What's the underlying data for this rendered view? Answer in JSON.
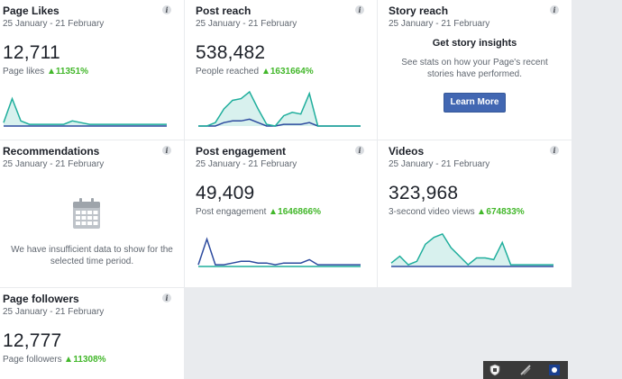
{
  "cards": {
    "likes": {
      "title": "Page Likes",
      "date": "25 January - 21 February",
      "value": "12,711",
      "sub_label": "Page likes",
      "delta": "11351%",
      "spark": [
        2,
        16,
        3,
        1,
        1,
        1,
        1,
        1,
        3,
        2,
        1,
        1,
        1,
        1,
        1,
        1,
        1,
        1,
        1,
        1
      ],
      "spark_secondary": [
        0,
        0,
        0,
        0,
        0,
        0,
        0,
        0,
        0,
        0,
        0,
        0,
        0,
        0,
        0,
        0,
        0,
        0,
        0,
        0
      ]
    },
    "reach": {
      "title": "Post reach",
      "date": "25 January - 21 February",
      "value": "538,482",
      "sub_label": "People reached",
      "delta": "1631664%",
      "spark": [
        0,
        0,
        2,
        10,
        15,
        16,
        20,
        10,
        1,
        0,
        6,
        8,
        7,
        19,
        0,
        0,
        0,
        0,
        0,
        0
      ],
      "spark_secondary": [
        0,
        0,
        0,
        2,
        3,
        3,
        4,
        2,
        0,
        0,
        1,
        1,
        1,
        2,
        0,
        0,
        0,
        0,
        0,
        0
      ]
    },
    "story": {
      "title": "Story reach",
      "date": "25 January - 21 February",
      "heading": "Get story insights",
      "text": "See stats on how your Page's recent stories have performed.",
      "button": "Learn More"
    },
    "recs": {
      "title": "Recommendations",
      "date": "25 January - 21 February",
      "text": "We have insufficient data to show for the selected time period."
    },
    "engage": {
      "title": "Post engagement",
      "date": "25 January - 21 February",
      "value": "49,409",
      "sub_label": "Post engagement",
      "delta": "1646866%",
      "spark": [
        0,
        0,
        0,
        0,
        0,
        0,
        0,
        0,
        0,
        0,
        0,
        0,
        0,
        0,
        0,
        0,
        0,
        0,
        0,
        0
      ],
      "spark_secondary": [
        1,
        16,
        1,
        1,
        2,
        3,
        3,
        2,
        2,
        1,
        2,
        2,
        2,
        4,
        1,
        1,
        1,
        1,
        1,
        1
      ]
    },
    "videos": {
      "title": "Videos",
      "date": "25 January - 21 February",
      "value": "323,968",
      "sub_label": "3-second video views",
      "delta": "674833%",
      "spark": [
        2,
        6,
        1,
        3,
        13,
        17,
        19,
        11,
        6,
        1,
        5,
        5,
        4,
        14,
        1,
        1,
        1,
        1,
        1,
        1
      ],
      "spark_secondary": [
        0,
        0,
        0,
        0,
        0,
        0,
        0,
        0,
        0,
        0,
        0,
        0,
        0,
        0,
        0,
        0,
        0,
        0,
        0,
        0
      ]
    },
    "follow": {
      "title": "Page followers",
      "date": "25 January - 21 February",
      "value": "12,777",
      "sub_label": "Page followers",
      "delta": "11308%"
    }
  },
  "info_glyph": "i",
  "colors": {
    "spark_teal": "#1fae9c",
    "spark_fill": "#d8f1ee",
    "spark_blue": "#2d4b9f",
    "delta_green": "#42b72a",
    "button_blue": "#4267b2"
  },
  "icons": {
    "info": "info-icon",
    "calendar": "calendar-icon",
    "up_arrow": "up-arrow-icon"
  }
}
